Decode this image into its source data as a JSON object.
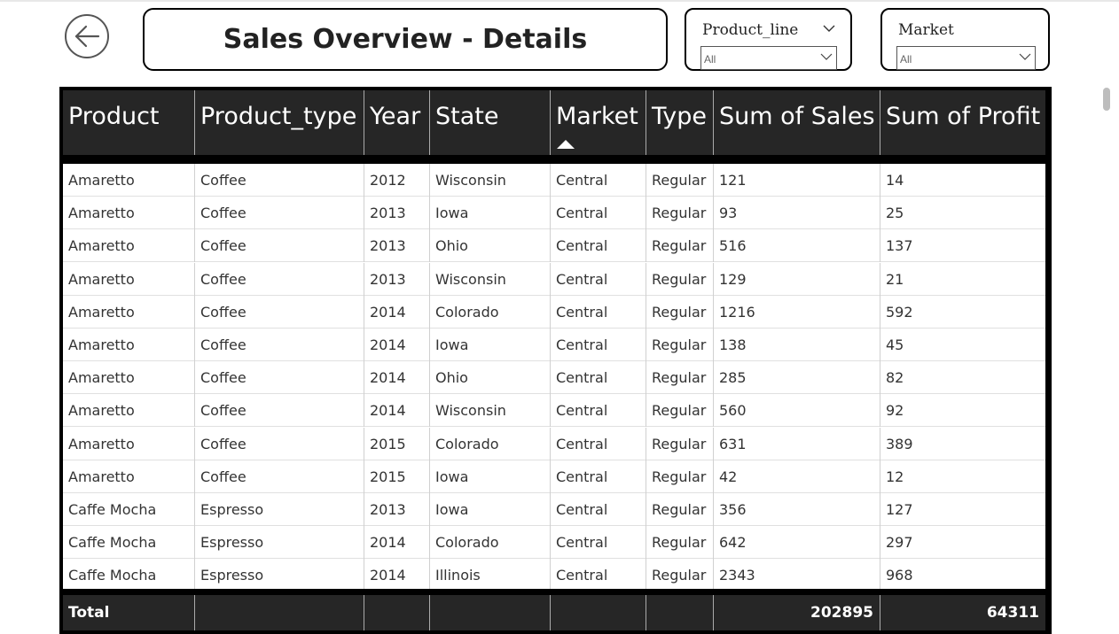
{
  "page_title": "Sales Overview - Details",
  "filters": {
    "product_line": {
      "label": "Product_line",
      "value": "All"
    },
    "market": {
      "label": "Market",
      "value": "All"
    }
  },
  "table": {
    "columns": [
      "Product",
      "Product_type",
      "Year",
      "State",
      "Market",
      "Type",
      "Sum of Sales",
      "Sum of Profit"
    ],
    "sorted_column": "Market",
    "sort_direction": "ascending",
    "rows": [
      [
        "Amaretto",
        "Coffee",
        "2012",
        "Wisconsin",
        "Central",
        "Regular",
        "121",
        "14"
      ],
      [
        "Amaretto",
        "Coffee",
        "2013",
        "Iowa",
        "Central",
        "Regular",
        "93",
        "25"
      ],
      [
        "Amaretto",
        "Coffee",
        "2013",
        "Ohio",
        "Central",
        "Regular",
        "516",
        "137"
      ],
      [
        "Amaretto",
        "Coffee",
        "2013",
        "Wisconsin",
        "Central",
        "Regular",
        "129",
        "21"
      ],
      [
        "Amaretto",
        "Coffee",
        "2014",
        "Colorado",
        "Central",
        "Regular",
        "1216",
        "592"
      ],
      [
        "Amaretto",
        "Coffee",
        "2014",
        "Iowa",
        "Central",
        "Regular",
        "138",
        "45"
      ],
      [
        "Amaretto",
        "Coffee",
        "2014",
        "Ohio",
        "Central",
        "Regular",
        "285",
        "82"
      ],
      [
        "Amaretto",
        "Coffee",
        "2014",
        "Wisconsin",
        "Central",
        "Regular",
        "560",
        "92"
      ],
      [
        "Amaretto",
        "Coffee",
        "2015",
        "Colorado",
        "Central",
        "Regular",
        "631",
        "389"
      ],
      [
        "Amaretto",
        "Coffee",
        "2015",
        "Iowa",
        "Central",
        "Regular",
        "42",
        "12"
      ],
      [
        "Caffe Mocha",
        "Espresso",
        "2013",
        "Iowa",
        "Central",
        "Regular",
        "356",
        "127"
      ],
      [
        "Caffe Mocha",
        "Espresso",
        "2014",
        "Colorado",
        "Central",
        "Regular",
        "642",
        "297"
      ],
      [
        "Caffe Mocha",
        "Espresso",
        "2014",
        "Illinois",
        "Central",
        "Regular",
        "2343",
        "968"
      ]
    ],
    "total": {
      "label": "Total",
      "sum_of_sales": "202895",
      "sum_of_profit": "64311"
    }
  },
  "icons": {
    "back": "arrow-left-circle-icon",
    "dropdown": "chevron-down-icon",
    "sort": "sort-ascending-icon"
  },
  "colors": {
    "header_bg": "#262626",
    "frame": "#000000",
    "header_text": "#ffffff"
  }
}
